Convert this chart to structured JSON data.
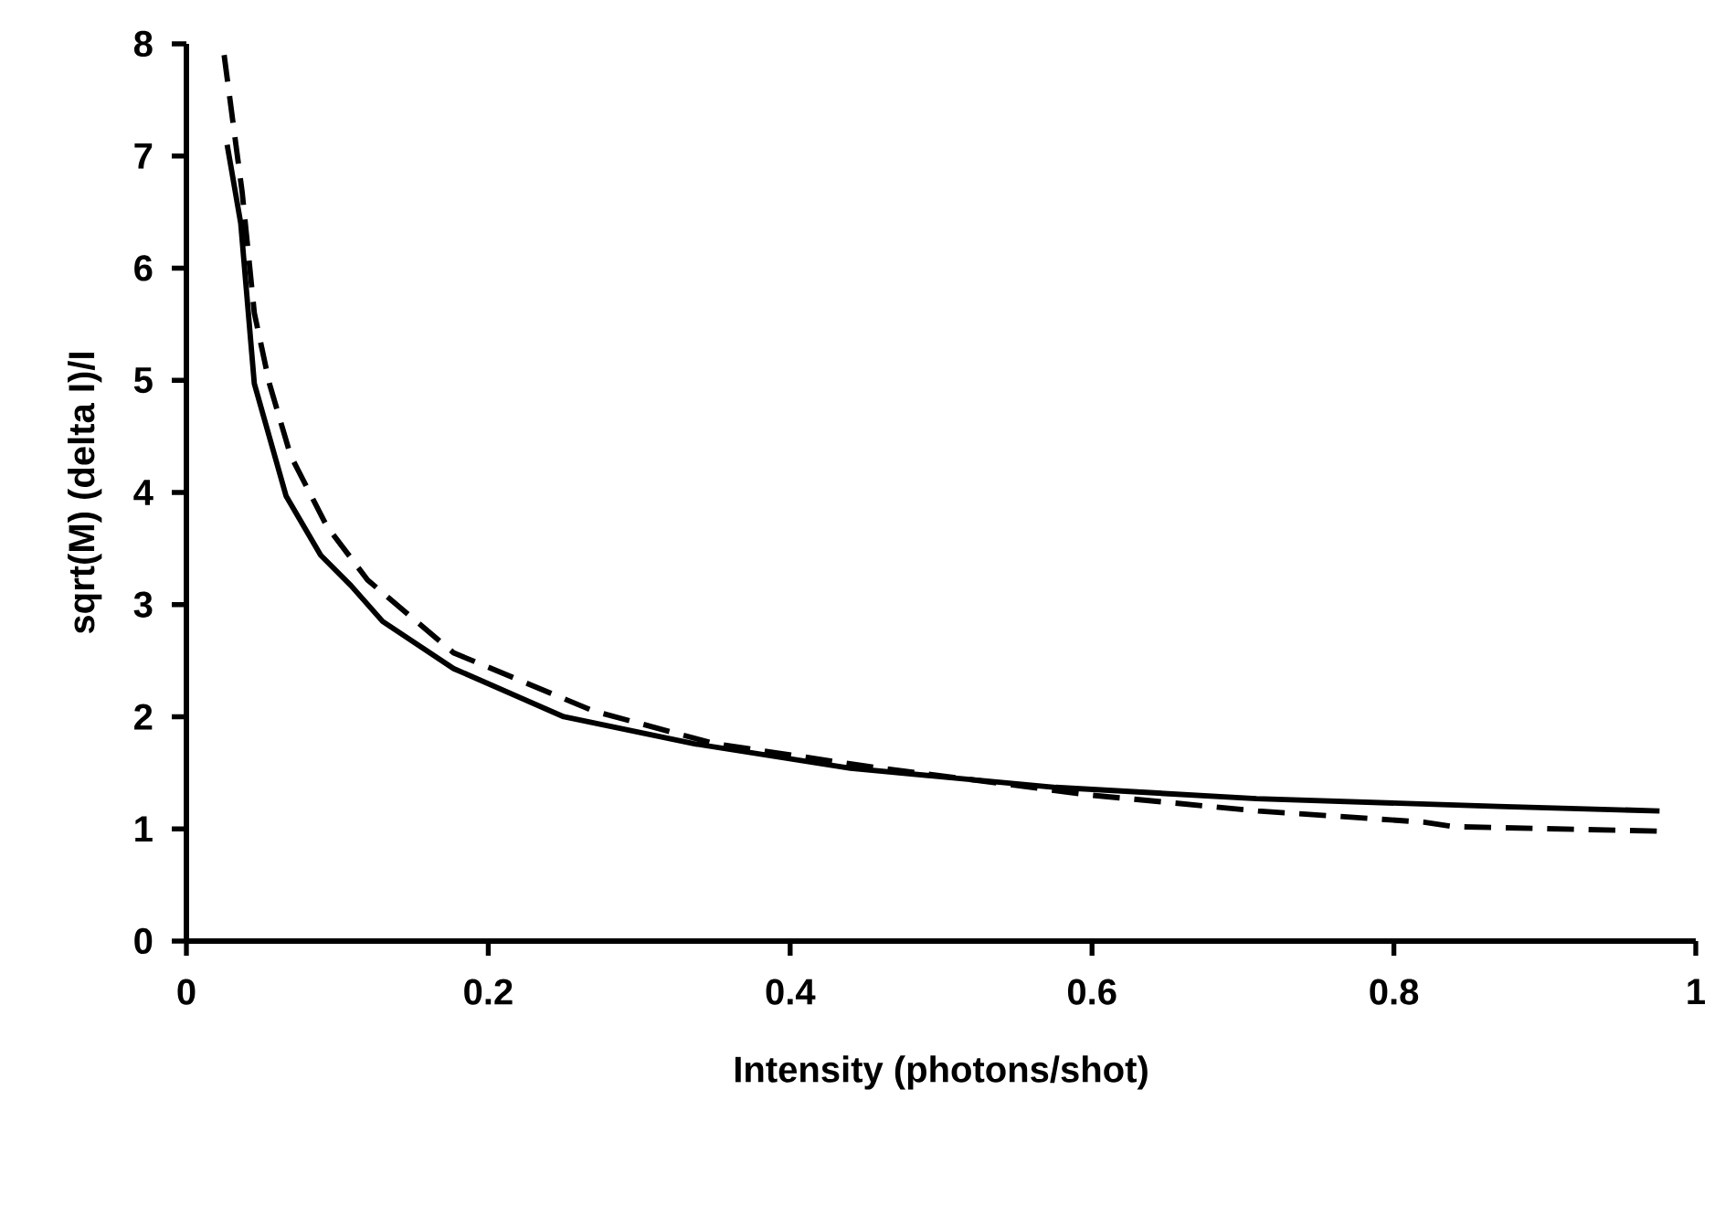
{
  "chart_data": {
    "type": "line",
    "xlabel": "Intensity    (photons/shot)",
    "ylabel": "sqrt(M)    (delta    I)/I",
    "xlim": [
      0,
      1
    ],
    "ylim": [
      0,
      8
    ],
    "xticks": [
      0,
      0.2,
      0.4,
      0.6,
      0.8,
      1
    ],
    "yticks": [
      0,
      1,
      2,
      3,
      4,
      5,
      6,
      7,
      8
    ],
    "grid": false,
    "marker": "none",
    "series": [
      {
        "color": "#000000",
        "line_style": "solid",
        "x": [
          0.027,
          0.036,
          0.045,
          0.066,
          0.089,
          0.109,
          0.13,
          0.177,
          0.25,
          0.336,
          0.44,
          0.576,
          0.709,
          0.869,
          0.976
        ],
        "values": [
          7.1,
          6.4,
          4.97,
          3.97,
          3.44,
          3.17,
          2.85,
          2.43,
          2.0,
          1.76,
          1.54,
          1.37,
          1.27,
          1.2,
          1.16
        ]
      },
      {
        "color": "#000000",
        "line_style": "dashed",
        "x": [
          0.025,
          0.037,
          0.045,
          0.055,
          0.069,
          0.093,
          0.12,
          0.177,
          0.27,
          0.35,
          0.45,
          0.6,
          0.71,
          0.82,
          0.84,
          0.976
        ],
        "values": [
          7.9,
          6.67,
          5.6,
          4.97,
          4.33,
          3.7,
          3.22,
          2.57,
          2.05,
          1.76,
          1.56,
          1.3,
          1.16,
          1.06,
          1.02,
          0.98
        ]
      }
    ]
  }
}
